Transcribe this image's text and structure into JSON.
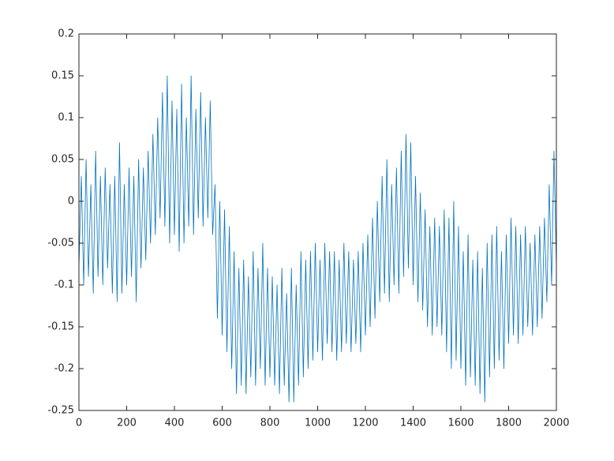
{
  "chart_data": {
    "type": "line",
    "x": [
      0,
      10,
      20,
      30,
      40,
      50,
      60,
      70,
      80,
      90,
      100,
      110,
      120,
      130,
      140,
      150,
      160,
      170,
      180,
      190,
      200,
      210,
      220,
      230,
      240,
      250,
      260,
      270,
      280,
      290,
      300,
      310,
      320,
      330,
      340,
      350,
      360,
      370,
      380,
      390,
      400,
      410,
      420,
      430,
      440,
      450,
      460,
      470,
      480,
      490,
      500,
      510,
      520,
      530,
      540,
      550,
      560,
      570,
      580,
      590,
      600,
      610,
      620,
      630,
      640,
      650,
      660,
      670,
      680,
      690,
      700,
      710,
      720,
      730,
      740,
      750,
      760,
      770,
      780,
      790,
      800,
      810,
      820,
      830,
      840,
      850,
      860,
      870,
      880,
      890,
      900,
      910,
      920,
      930,
      940,
      950,
      960,
      970,
      980,
      990,
      1000,
      1010,
      1020,
      1030,
      1040,
      1050,
      1060,
      1070,
      1080,
      1090,
      1100,
      1110,
      1120,
      1130,
      1140,
      1150,
      1160,
      1170,
      1180,
      1190,
      1200,
      1210,
      1220,
      1230,
      1240,
      1250,
      1260,
      1270,
      1280,
      1290,
      1300,
      1310,
      1320,
      1330,
      1340,
      1350,
      1360,
      1370,
      1380,
      1390,
      1400,
      1410,
      1420,
      1430,
      1440,
      1450,
      1460,
      1470,
      1480,
      1490,
      1500,
      1510,
      1520,
      1530,
      1540,
      1550,
      1560,
      1570,
      1580,
      1590,
      1600,
      1610,
      1620,
      1630,
      1640,
      1650,
      1660,
      1670,
      1680,
      1690,
      1700,
      1710,
      1720,
      1730,
      1740,
      1750,
      1760,
      1770,
      1780,
      1790,
      1800,
      1810,
      1820,
      1830,
      1840,
      1850,
      1860,
      1870,
      1880,
      1890,
      1900,
      1910,
      1920,
      1930,
      1940,
      1950,
      1960,
      1970,
      1980,
      1990,
      2000
    ],
    "series": [
      {
        "color": "#0072bd",
        "values": [
          -0.08,
          0.03,
          -0.1,
          0.05,
          -0.09,
          0.02,
          -0.11,
          0.06,
          -0.09,
          0.03,
          -0.1,
          0.04,
          -0.08,
          0.02,
          -0.11,
          0.03,
          -0.12,
          0.07,
          -0.11,
          0.02,
          -0.1,
          0.04,
          -0.09,
          0.03,
          -0.12,
          0.05,
          -0.08,
          0.04,
          -0.07,
          0.06,
          -0.05,
          0.08,
          -0.04,
          0.1,
          -0.02,
          0.13,
          -0.03,
          0.15,
          -0.05,
          0.12,
          -0.04,
          0.11,
          -0.06,
          0.14,
          -0.05,
          0.1,
          -0.03,
          0.15,
          -0.04,
          0.11,
          -0.02,
          0.13,
          -0.03,
          0.1,
          -0.02,
          0.12,
          -0.04,
          0.02,
          -0.14,
          0.0,
          -0.16,
          -0.01,
          -0.18,
          -0.03,
          -0.2,
          -0.06,
          -0.23,
          -0.08,
          -0.22,
          -0.07,
          -0.23,
          -0.09,
          -0.21,
          -0.06,
          -0.22,
          -0.08,
          -0.2,
          -0.05,
          -0.22,
          -0.08,
          -0.21,
          -0.09,
          -0.22,
          -0.1,
          -0.23,
          -0.08,
          -0.22,
          -0.11,
          -0.24,
          -0.08,
          -0.24,
          -0.1,
          -0.22,
          -0.06,
          -0.21,
          -0.07,
          -0.2,
          -0.06,
          -0.19,
          -0.05,
          -0.18,
          -0.07,
          -0.19,
          -0.05,
          -0.17,
          -0.06,
          -0.18,
          -0.06,
          -0.19,
          -0.07,
          -0.18,
          -0.05,
          -0.17,
          -0.06,
          -0.18,
          -0.07,
          -0.17,
          -0.06,
          -0.18,
          -0.05,
          -0.16,
          -0.04,
          -0.15,
          -0.02,
          -0.14,
          0.0,
          -0.12,
          0.03,
          -0.11,
          0.05,
          -0.12,
          0.02,
          -0.1,
          0.04,
          -0.11,
          0.06,
          -0.09,
          0.08,
          -0.08,
          0.07,
          -0.1,
          0.03,
          -0.12,
          0.01,
          -0.13,
          -0.01,
          -0.15,
          -0.03,
          -0.16,
          -0.02,
          -0.15,
          -0.03,
          -0.16,
          -0.01,
          -0.18,
          -0.02,
          -0.2,
          0.0,
          -0.19,
          -0.03,
          -0.2,
          -0.06,
          -0.22,
          -0.04,
          -0.21,
          -0.07,
          -0.22,
          -0.06,
          -0.23,
          -0.08,
          -0.24,
          -0.05,
          -0.21,
          -0.04,
          -0.2,
          -0.03,
          -0.19,
          -0.06,
          -0.2,
          -0.04,
          -0.17,
          -0.02,
          -0.16,
          -0.03,
          -0.17,
          -0.04,
          -0.16,
          -0.03,
          -0.15,
          -0.05,
          -0.16,
          -0.04,
          -0.15,
          -0.03,
          -0.14,
          -0.02,
          -0.12,
          0.02,
          -0.1,
          0.06,
          -0.08
        ]
      }
    ],
    "xlim": [
      0,
      2000
    ],
    "xticks": [
      0,
      200,
      400,
      600,
      800,
      1000,
      1200,
      1400,
      1600,
      1800,
      2000
    ],
    "ylim": [
      -0.25,
      0.2
    ],
    "yticks": [
      -0.25,
      -0.2,
      -0.15,
      -0.1,
      -0.05,
      0,
      0.05,
      0.1,
      0.15,
      0.2
    ]
  }
}
